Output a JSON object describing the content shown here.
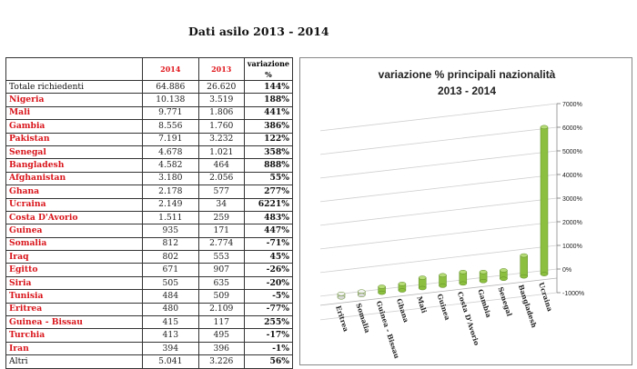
{
  "page_title": "Dati asilo 2013 - 2014",
  "table": {
    "headers": [
      "",
      "2014",
      "2013",
      "variazione %"
    ],
    "rows": [
      {
        "name": "Totale richiedenti",
        "y2014": "64.886",
        "y2013": "26.620",
        "var": "144%",
        "style": "plain"
      },
      {
        "name": "Nigeria",
        "y2014": "10.138",
        "y2013": "3.519",
        "var": "188%",
        "style": "red"
      },
      {
        "name": "Mali",
        "y2014": "9.771",
        "y2013": "1.806",
        "var": "441%",
        "style": "red"
      },
      {
        "name": "Gambia",
        "y2014": "8.556",
        "y2013": "1.760",
        "var": "386%",
        "style": "red"
      },
      {
        "name": "Pakistan",
        "y2014": "7.191",
        "y2013": "3.232",
        "var": "122%",
        "style": "red"
      },
      {
        "name": "Senegal",
        "y2014": "4.678",
        "y2013": "1.021",
        "var": "358%",
        "style": "red"
      },
      {
        "name": "Bangladesh",
        "y2014": "4.582",
        "y2013": "464",
        "var": "888%",
        "style": "red"
      },
      {
        "name": "Afghanistan",
        "y2014": "3.180",
        "y2013": "2.056",
        "var": "55%",
        "style": "red"
      },
      {
        "name": "Ghana",
        "y2014": "2.178",
        "y2013": "577",
        "var": "277%",
        "style": "red"
      },
      {
        "name": "Ucraina",
        "y2014": "2.149",
        "y2013": "34",
        "var": "6221%",
        "style": "red"
      },
      {
        "name": "Costa D'Avorio",
        "y2014": "1.511",
        "y2013": "259",
        "var": "483%",
        "style": "red"
      },
      {
        "name": "Guinea",
        "y2014": "935",
        "y2013": "171",
        "var": "447%",
        "style": "red"
      },
      {
        "name": "Somalia",
        "y2014": "812",
        "y2013": "2.774",
        "var": "-71%",
        "style": "red"
      },
      {
        "name": "Iraq",
        "y2014": "802",
        "y2013": "553",
        "var": "45%",
        "style": "red"
      },
      {
        "name": "Egitto",
        "y2014": "671",
        "y2013": "907",
        "var": "-26%",
        "style": "red"
      },
      {
        "name": "Siria",
        "y2014": "505",
        "y2013": "635",
        "var": "-20%",
        "style": "red"
      },
      {
        "name": "Tunisia",
        "y2014": "484",
        "y2013": "509",
        "var": "-5%",
        "style": "red"
      },
      {
        "name": "Eritrea",
        "y2014": "480",
        "y2013": "2.109",
        "var": "-77%",
        "style": "red"
      },
      {
        "name": "Guinea - Bissau",
        "y2014": "415",
        "y2013": "117",
        "var": "255%",
        "style": "red"
      },
      {
        "name": "Turchia",
        "y2014": "413",
        "y2013": "495",
        "var": "-17%",
        "style": "red"
      },
      {
        "name": "Iran",
        "y2014": "394",
        "y2013": "396",
        "var": "-1%",
        "style": "red"
      },
      {
        "name": "Altri",
        "y2014": "5.041",
        "y2013": "3.226",
        "var": "56%",
        "style": "plain"
      }
    ]
  },
  "chart_data": {
    "type": "bar",
    "title": "variazione % principali nazionalità",
    "subtitle": "2013 - 2014",
    "categories": [
      "Eritrea",
      "Somalia",
      "Guinea - Bissau",
      "Ghana",
      "Mali",
      "Guinea",
      "Costa D'Avorio",
      "Gambia",
      "Senegal",
      "Bangladesh",
      "Ucraina"
    ],
    "values": [
      -77,
      -71,
      255,
      277,
      441,
      447,
      483,
      386,
      358,
      888,
      6221
    ],
    "ylim": [
      -1000,
      7000
    ],
    "yticks": [
      "-1000%",
      "0%",
      "1000%",
      "2000%",
      "3000%",
      "4000%",
      "5000%",
      "6000%",
      "7000%"
    ],
    "ytick_values": [
      -1000,
      0,
      1000,
      2000,
      3000,
      4000,
      5000,
      6000,
      7000
    ],
    "grid": true,
    "bar_color": "#8cbf3f",
    "negative_bar_color": "#d8d8d8"
  }
}
